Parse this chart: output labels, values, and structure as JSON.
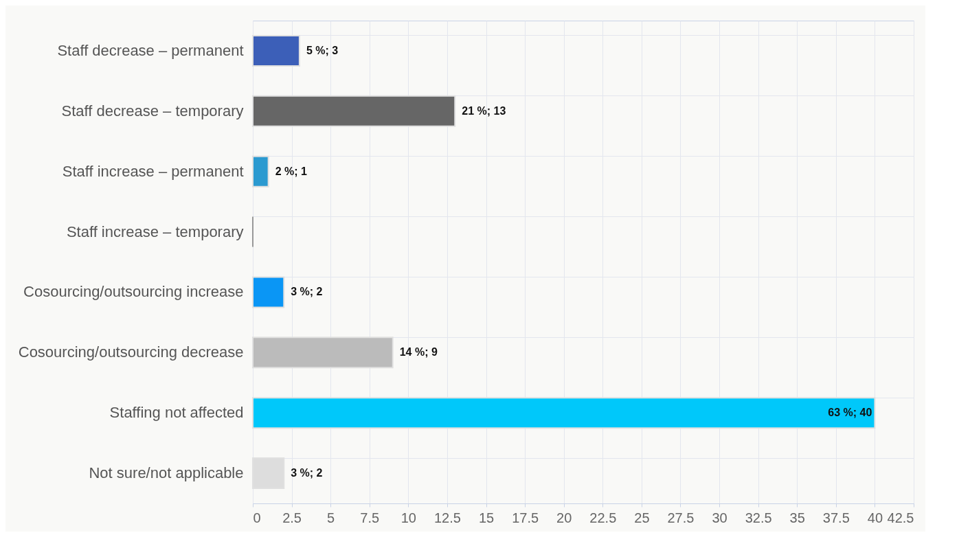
{
  "chart_data": {
    "type": "bar",
    "orientation": "horizontal",
    "categories": [
      "Staff decrease – permanent",
      "Staff decrease – temporary",
      "Staff increase – permanent",
      "Staff increase – temporary",
      "Cosourcing/outsourcing increase",
      "Cosourcing/outsourcing decrease",
      "Staffing not affected",
      "Not sure/not applicable"
    ],
    "values": [
      3,
      13,
      1,
      0,
      2,
      9,
      40,
      2
    ],
    "value_labels": [
      "5 %; 3",
      "21 %; 13",
      "2 %; 1",
      null,
      "3 %; 2",
      "14 %; 9",
      "63 %; 40",
      "3 %; 2"
    ],
    "colors": [
      "#3c5fb8",
      "#666666",
      "#2b9ad0",
      "#999999",
      "#0a96f5",
      "#bbbbbb",
      "#00c8fa",
      "#dddddd"
    ],
    "xlim": [
      0,
      42.5
    ],
    "xticks": [
      0,
      2.5,
      5,
      7.5,
      10,
      12.5,
      15,
      17.5,
      20,
      22.5,
      25,
      27.5,
      30,
      32.5,
      35,
      37.5,
      40,
      42.5
    ],
    "grid": true
  }
}
